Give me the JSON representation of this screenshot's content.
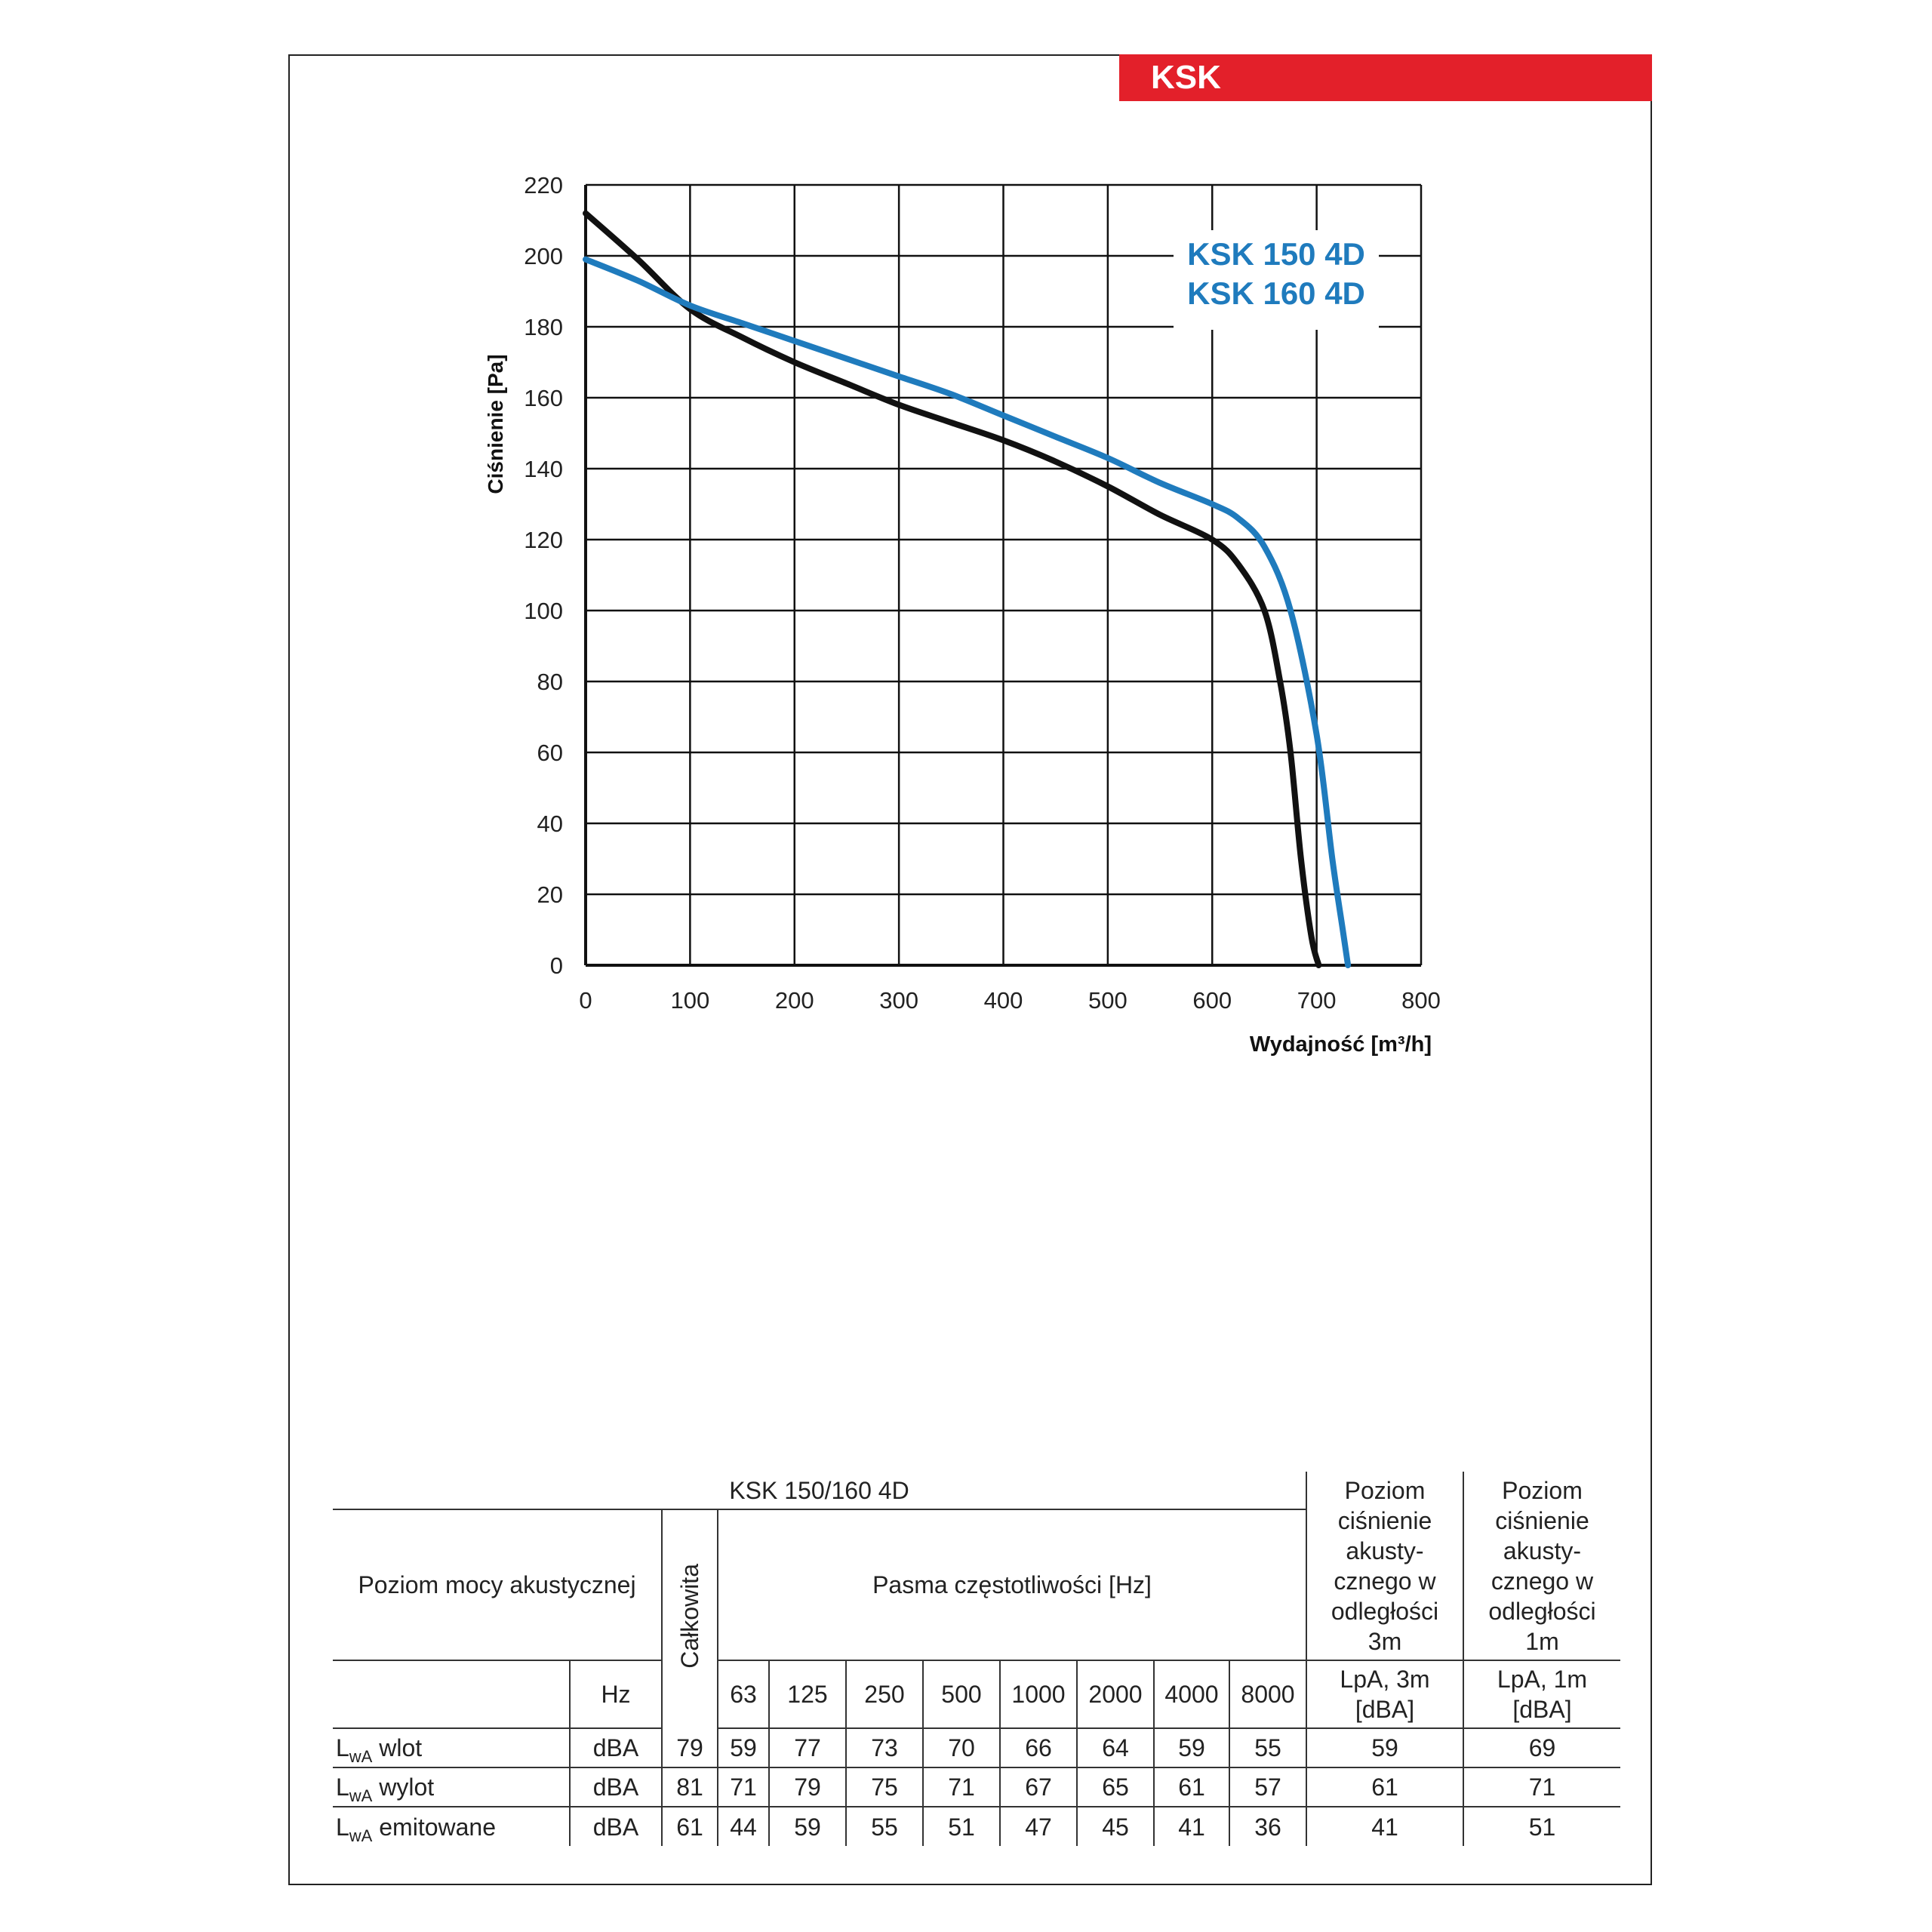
{
  "header": {
    "title": "KSK",
    "color": "#e3202a"
  },
  "chart_data": {
    "type": "line",
    "ylabel": "Ciśnienie [Pa]",
    "xlabel_main": "Wydajność",
    "xlabel_unit": "[m³/h]",
    "xlim": [
      0,
      800
    ],
    "ylim": [
      0,
      220
    ],
    "x_ticks": [
      0,
      100,
      200,
      300,
      400,
      500,
      600,
      700,
      800
    ],
    "y_ticks": [
      0,
      20,
      40,
      60,
      80,
      100,
      120,
      140,
      160,
      180,
      200,
      220
    ],
    "grid": true,
    "legend": {
      "placement": "top-right",
      "lines": [
        "KSK 150 4D",
        "KSK 160 4D"
      ],
      "color": "#1f7bbd"
    },
    "series": [
      {
        "color": "#111111",
        "points": [
          [
            0,
            212
          ],
          [
            50,
            199
          ],
          [
            100,
            185
          ],
          [
            150,
            177
          ],
          [
            200,
            170
          ],
          [
            250,
            164
          ],
          [
            300,
            158
          ],
          [
            350,
            153
          ],
          [
            400,
            148
          ],
          [
            450,
            142
          ],
          [
            500,
            135
          ],
          [
            550,
            127
          ],
          [
            600,
            120
          ],
          [
            625,
            113
          ],
          [
            650,
            100
          ],
          [
            665,
            80
          ],
          [
            675,
            60
          ],
          [
            685,
            30
          ],
          [
            695,
            8
          ],
          [
            702,
            0
          ]
        ]
      },
      {
        "color": "#1f7bbd",
        "points": [
          [
            0,
            199
          ],
          [
            50,
            193
          ],
          [
            100,
            186
          ],
          [
            150,
            181
          ],
          [
            200,
            176
          ],
          [
            250,
            171
          ],
          [
            300,
            166
          ],
          [
            350,
            161
          ],
          [
            400,
            155
          ],
          [
            450,
            149
          ],
          [
            500,
            143
          ],
          [
            550,
            136
          ],
          [
            600,
            130
          ],
          [
            625,
            126
          ],
          [
            650,
            118
          ],
          [
            675,
            100
          ],
          [
            700,
            65
          ],
          [
            715,
            30
          ],
          [
            725,
            10
          ],
          [
            730,
            0
          ]
        ]
      }
    ]
  },
  "table": {
    "title": "KSK 150/160 4D",
    "row_header": "Poziom mocy akustycznej",
    "total_header": "Całkowita",
    "bands_header": "Pasma częstotliwości [Hz]",
    "lpa3_header": "Poziom ciśnienie akusty-cznego w odległości 3m",
    "lpa3_lines": [
      "Poziom",
      "ciśnienie",
      "akusty-",
      "cznego w",
      "odległości",
      "3m"
    ],
    "lpa1_lines": [
      "Poziom",
      "ciśnienie",
      "akusty-",
      "cznego w",
      "odległości",
      "1m"
    ],
    "unit_hz": "Hz",
    "bands": [
      "63",
      "125",
      "250",
      "500",
      "1000",
      "2000",
      "4000",
      "8000"
    ],
    "lpa3_unit": [
      "LpA, 3m",
      "[dBA]"
    ],
    "lpa1_unit": [
      "LpA, 1m",
      "[dBA]"
    ],
    "rows": [
      {
        "prefix": "L",
        "sub": "wA",
        "name": "wlot",
        "unit": "dBA",
        "total": "79",
        "values": [
          "59",
          "77",
          "73",
          "70",
          "66",
          "64",
          "59",
          "55"
        ],
        "lpa3": "59",
        "lpa1": "69"
      },
      {
        "prefix": "L",
        "sub": "wA",
        "name": "wylot",
        "unit": "dBA",
        "total": "81",
        "values": [
          "71",
          "79",
          "75",
          "71",
          "67",
          "65",
          "61",
          "57"
        ],
        "lpa3": "61",
        "lpa1": "71"
      },
      {
        "prefix": "L",
        "sub": "wA",
        "name": "emitowane",
        "unit": "dBA",
        "total": "61",
        "values": [
          "44",
          "59",
          "55",
          "51",
          "47",
          "45",
          "41",
          "36"
        ],
        "lpa3": "41",
        "lpa1": "51"
      }
    ]
  }
}
